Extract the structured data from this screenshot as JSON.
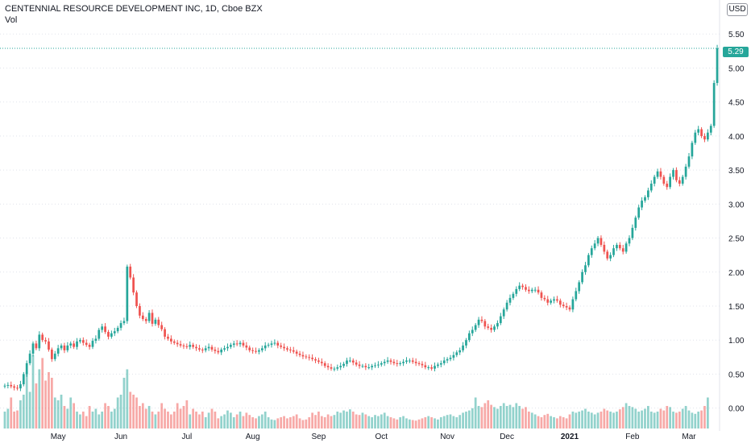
{
  "title": "CENTENNIAL RESOURCE DEVELOPMENT INC, 1D, Cboe BZX",
  "volume_label": "Vol",
  "currency": "USD",
  "last_price_label": "5.29",
  "colors": {
    "up": "#26a69a",
    "down": "#ef5350",
    "grid": "#e0e3eb",
    "text": "#131722"
  },
  "chart_data": {
    "type": "candlestick",
    "y_ticks": [
      "0.00",
      "0.50",
      "1.00",
      "1.50",
      "2.00",
      "2.50",
      "3.00",
      "3.50",
      "4.00",
      "4.50",
      "5.00",
      "5.50"
    ],
    "x_ticks": [
      {
        "label": "May",
        "i": 17
      },
      {
        "label": "Jun",
        "i": 37
      },
      {
        "label": "Jul",
        "i": 58
      },
      {
        "label": "Aug",
        "i": 79
      },
      {
        "label": "Sep",
        "i": 100
      },
      {
        "label": "Oct",
        "i": 120
      },
      {
        "label": "Nov",
        "i": 141
      },
      {
        "label": "Dec",
        "i": 160
      },
      {
        "label": "2021",
        "i": 180,
        "bold": true
      },
      {
        "label": "Feb",
        "i": 200
      },
      {
        "label": "Mar",
        "i": 218
      }
    ],
    "ylim": [
      -0.3,
      6.0
    ],
    "last_price": 5.29,
    "closes": [
      0.33,
      0.34,
      0.32,
      0.3,
      0.29,
      0.35,
      0.5,
      0.66,
      0.8,
      0.95,
      0.88,
      1.08,
      1.0,
      0.98,
      0.86,
      0.72,
      0.8,
      0.88,
      0.92,
      0.85,
      0.92,
      0.95,
      0.9,
      0.98,
      1.0,
      0.96,
      0.93,
      0.9,
      0.99,
      1.02,
      1.15,
      1.2,
      1.12,
      1.05,
      1.1,
      1.13,
      1.18,
      1.25,
      1.28,
      2.08,
      1.92,
      1.7,
      1.5,
      1.36,
      1.31,
      1.28,
      1.4,
      1.24,
      1.3,
      1.22,
      1.16,
      1.05,
      1.02,
      0.98,
      0.96,
      0.94,
      0.92,
      0.91,
      0.9,
      0.93,
      0.9,
      0.88,
      0.86,
      0.85,
      0.88,
      0.9,
      0.86,
      0.84,
      0.82,
      0.86,
      0.88,
      0.9,
      0.93,
      0.95,
      0.94,
      0.96,
      0.92,
      0.89,
      0.85,
      0.84,
      0.83,
      0.85,
      0.88,
      0.92,
      0.93,
      0.95,
      0.96,
      0.92,
      0.9,
      0.88,
      0.86,
      0.85,
      0.83,
      0.8,
      0.78,
      0.76,
      0.75,
      0.74,
      0.72,
      0.7,
      0.68,
      0.66,
      0.62,
      0.6,
      0.58,
      0.58,
      0.6,
      0.62,
      0.65,
      0.7,
      0.7,
      0.67,
      0.64,
      0.62,
      0.62,
      0.6,
      0.6,
      0.62,
      0.63,
      0.64,
      0.66,
      0.68,
      0.7,
      0.68,
      0.66,
      0.65,
      0.66,
      0.68,
      0.7,
      0.7,
      0.68,
      0.66,
      0.65,
      0.63,
      0.6,
      0.6,
      0.58,
      0.62,
      0.64,
      0.66,
      0.7,
      0.72,
      0.74,
      0.78,
      0.82,
      0.85,
      0.92,
      1.0,
      1.1,
      1.15,
      1.22,
      1.3,
      1.28,
      1.2,
      1.18,
      1.15,
      1.2,
      1.25,
      1.35,
      1.45,
      1.55,
      1.62,
      1.68,
      1.75,
      1.8,
      1.78,
      1.74,
      1.72,
      1.74,
      1.74,
      1.7,
      1.62,
      1.6,
      1.55,
      1.58,
      1.6,
      1.58,
      1.52,
      1.5,
      1.48,
      1.45,
      1.6,
      1.72,
      1.85,
      2.0,
      2.1,
      2.25,
      2.35,
      2.42,
      2.5,
      2.4,
      2.3,
      2.2,
      2.25,
      2.35,
      2.4,
      2.35,
      2.3,
      2.42,
      2.5,
      2.65,
      2.8,
      2.95,
      3.05,
      3.1,
      3.2,
      3.3,
      3.4,
      3.48,
      3.4,
      3.3,
      3.25,
      3.4,
      3.5,
      3.35,
      3.3,
      3.4,
      3.55,
      3.7,
      3.9,
      4.05,
      4.1,
      4.0,
      3.95,
      4.05,
      4.15,
      4.78,
      5.29
    ],
    "volumes": [
      0.3,
      0.35,
      0.55,
      0.3,
      0.32,
      0.5,
      0.6,
      1.0,
      0.65,
      1.3,
      0.8,
      1.05,
      1.25,
      0.85,
      1.0,
      0.9,
      0.55,
      0.5,
      0.6,
      0.4,
      0.35,
      0.55,
      0.45,
      0.3,
      0.25,
      0.3,
      0.22,
      0.4,
      0.3,
      0.35,
      0.25,
      0.3,
      0.45,
      0.4,
      0.3,
      0.35,
      0.55,
      0.6,
      0.9,
      1.05,
      0.65,
      0.6,
      0.55,
      0.4,
      0.45,
      0.35,
      0.4,
      0.3,
      0.25,
      0.3,
      0.45,
      0.35,
      0.3,
      0.25,
      0.3,
      0.45,
      0.35,
      0.4,
      0.5,
      0.25,
      0.35,
      0.3,
      0.25,
      0.3,
      0.2,
      0.28,
      0.35,
      0.3,
      0.18,
      0.22,
      0.25,
      0.32,
      0.28,
      0.2,
      0.25,
      0.3,
      0.22,
      0.28,
      0.24,
      0.2,
      0.18,
      0.22,
      0.25,
      0.3,
      0.2,
      0.16,
      0.15,
      0.18,
      0.2,
      0.22,
      0.18,
      0.2,
      0.22,
      0.25,
      0.18,
      0.15,
      0.16,
      0.2,
      0.28,
      0.24,
      0.3,
      0.22,
      0.2,
      0.25,
      0.22,
      0.24,
      0.3,
      0.28,
      0.32,
      0.3,
      0.34,
      0.3,
      0.25,
      0.24,
      0.28,
      0.25,
      0.22,
      0.2,
      0.24,
      0.22,
      0.25,
      0.28,
      0.22,
      0.2,
      0.18,
      0.16,
      0.2,
      0.22,
      0.18,
      0.16,
      0.15,
      0.14,
      0.16,
      0.18,
      0.2,
      0.22,
      0.2,
      0.18,
      0.16,
      0.2,
      0.22,
      0.24,
      0.25,
      0.22,
      0.2,
      0.24,
      0.28,
      0.3,
      0.32,
      0.36,
      0.55,
      0.4,
      0.38,
      0.45,
      0.5,
      0.42,
      0.38,
      0.35,
      0.4,
      0.45,
      0.4,
      0.42,
      0.38,
      0.45,
      0.4,
      0.35,
      0.38,
      0.3,
      0.28,
      0.25,
      0.22,
      0.2,
      0.24,
      0.26,
      0.22,
      0.2,
      0.18,
      0.22,
      0.2,
      0.18,
      0.25,
      0.3,
      0.28,
      0.3,
      0.32,
      0.35,
      0.3,
      0.28,
      0.25,
      0.28,
      0.3,
      0.35,
      0.32,
      0.3,
      0.28,
      0.3,
      0.34,
      0.38,
      0.45,
      0.4,
      0.38,
      0.35,
      0.3,
      0.32,
      0.35,
      0.4,
      0.3,
      0.28,
      0.3,
      0.35,
      0.32,
      0.4,
      0.38,
      0.3,
      0.28,
      0.3,
      0.35,
      0.4,
      0.32,
      0.28,
      0.26,
      0.3,
      0.32,
      0.4,
      0.55
    ]
  }
}
